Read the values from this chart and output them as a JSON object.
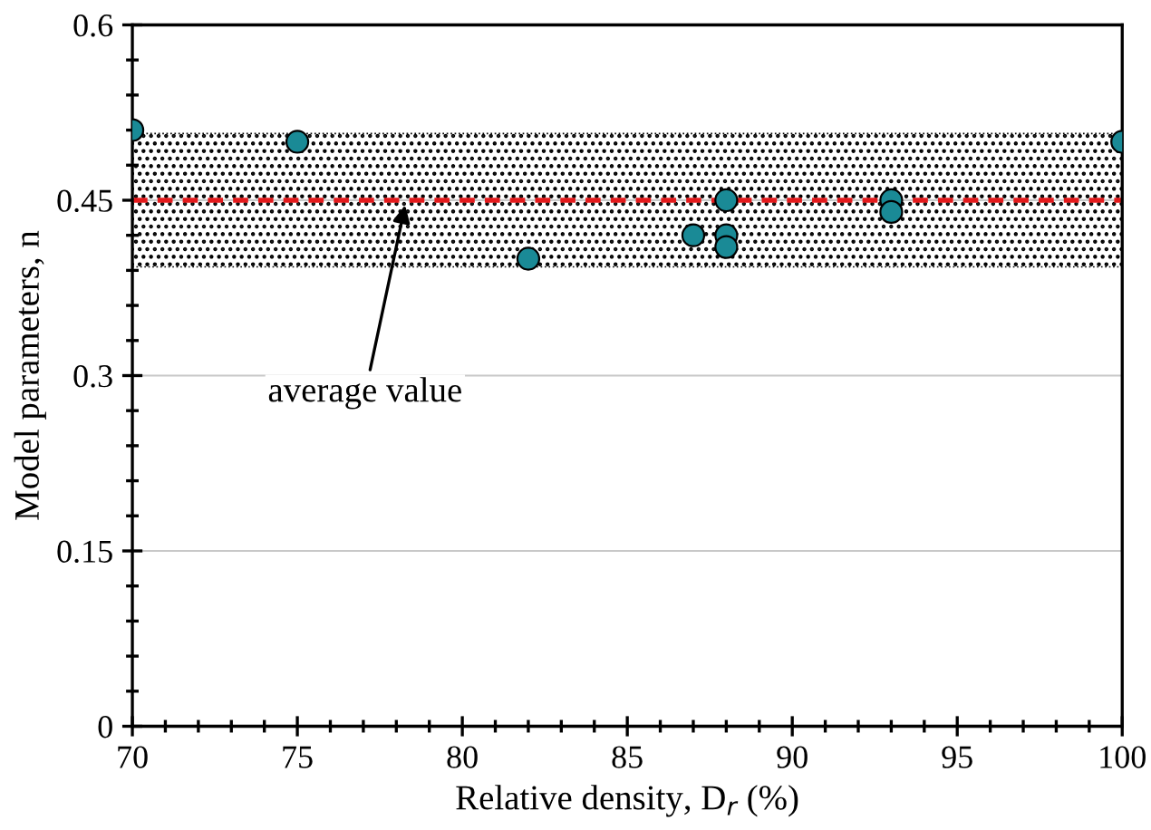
{
  "chart_data": {
    "type": "scatter",
    "xlabel": "Relative density, D$_{r}$ (%)",
    "ylabel": "Model parameters, n",
    "x": [
      70,
      75,
      82,
      87,
      88,
      88,
      88,
      93,
      93,
      100
    ],
    "series": [
      {
        "color": "#1a8a96",
        "values": [
          0.51,
          0.5,
          0.4,
          0.42,
          0.45,
          0.42,
          0.41,
          0.45,
          0.44,
          0.5
        ]
      }
    ],
    "marker": "circle",
    "xlim": [
      70,
      100
    ],
    "xticks": [
      70,
      75,
      80,
      85,
      90,
      95,
      100
    ],
    "ylim": [
      0,
      0.6
    ],
    "yticks": [
      0,
      0.15,
      0.3,
      0.45,
      0.6
    ],
    "grid": "y",
    "ref_lines": [
      {
        "axis": "y",
        "value": 0.45,
        "color": "#e41a1c",
        "line_style": "dashed"
      }
    ],
    "bands": [
      {
        "axis": "y",
        "from": 0.393,
        "to": 0.507,
        "color": "#000000"
      }
    ],
    "annotations": [
      {
        "text": "average value",
        "x": 78.3,
        "y": 0.45
      }
    ]
  }
}
